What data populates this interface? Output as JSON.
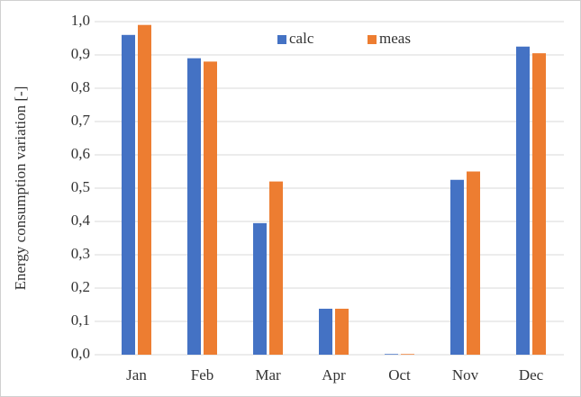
{
  "chart_data": {
    "type": "bar",
    "y_label": "Energy consumption variation [-]",
    "categories": [
      "Jan",
      "Feb",
      "Mar",
      "Apr",
      "Oct",
      "Nov",
      "Dec"
    ],
    "series": [
      {
        "name": "calc",
        "color": "#4472c4",
        "values": [
          0.96,
          0.89,
          0.395,
          0.138,
          0.002,
          0.525,
          0.925
        ]
      },
      {
        "name": "meas",
        "color": "#ed7d31",
        "values": [
          0.99,
          0.88,
          0.52,
          0.138,
          0.002,
          0.55,
          0.905
        ]
      }
    ],
    "ylim": [
      0,
      1
    ],
    "yticks": [
      {
        "value": 0,
        "label": "0,0"
      },
      {
        "value": 0.1,
        "label": "0,1"
      },
      {
        "value": 0.2,
        "label": "0,2"
      },
      {
        "value": 0.3,
        "label": "0,3"
      },
      {
        "value": 0.4,
        "label": "0,4"
      },
      {
        "value": 0.5,
        "label": "0,5"
      },
      {
        "value": 0.6,
        "label": "0,6"
      },
      {
        "value": 0.7,
        "label": "0,7"
      },
      {
        "value": 0.8,
        "label": "0,8"
      },
      {
        "value": 0.9,
        "label": "0,9"
      },
      {
        "value": 1,
        "label": "1,0"
      }
    ],
    "grid": true,
    "legend": "top"
  }
}
